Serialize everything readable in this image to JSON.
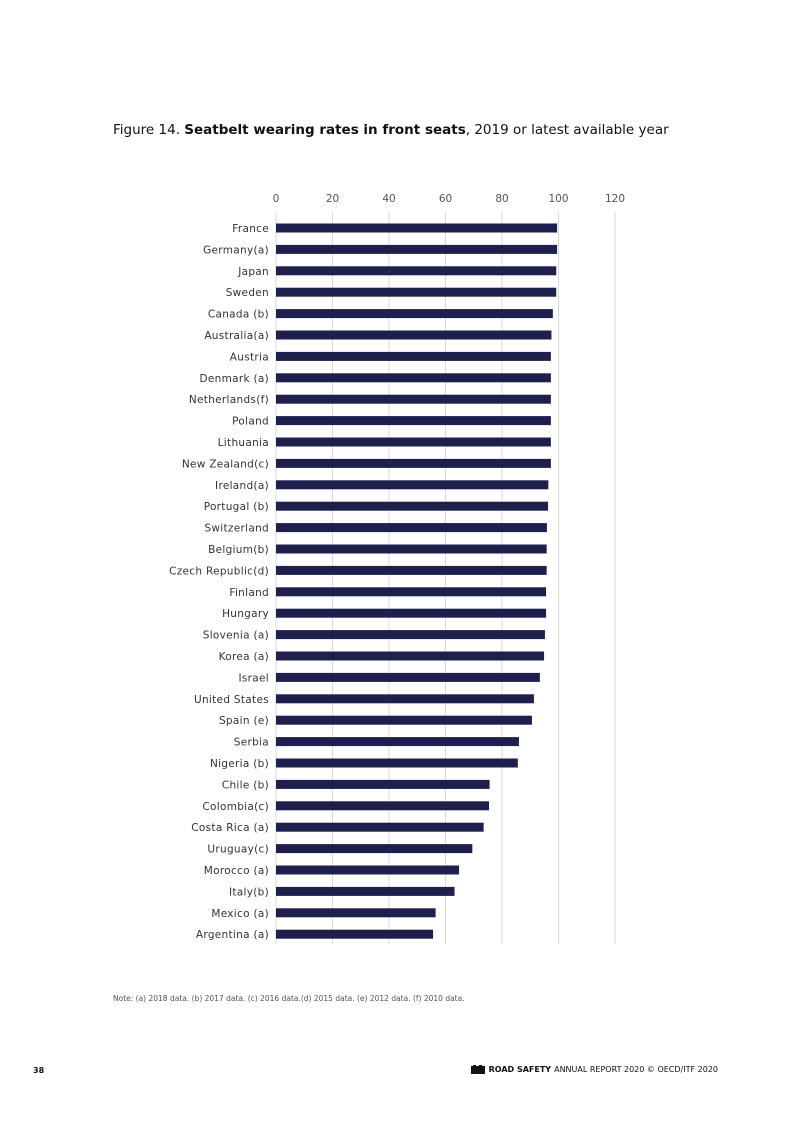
{
  "figure": {
    "label": "Figure 14.",
    "title_bold": "Seatbelt wearing rates in front seats",
    "title_rest": ", 2019 or latest available year"
  },
  "chart_data": {
    "type": "bar",
    "orientation": "horizontal",
    "xlim": [
      0,
      120
    ],
    "ticks": [
      0,
      20,
      40,
      60,
      80,
      100,
      120
    ],
    "grid": true,
    "axis_position": "top",
    "bar_color": "#1f1f4d",
    "categories": [
      "France",
      "Germany(a)",
      "Japan",
      "Sweden",
      "Canada (b)",
      "Australia(a)",
      "Austria",
      "Denmark (a)",
      "Netherlands(f)",
      "Poland",
      "Lithuania",
      "New Zealand(c)",
      "Ireland(a)",
      "Portugal (b)",
      "Switzerland",
      "Belgium(b)",
      "Czech Republic(d)",
      "Finland",
      "Hungary",
      "Slovenia (a)",
      "Korea (a)",
      "Israel",
      "United States",
      "Spain (e)",
      "Serbia",
      "Nigeria (b)",
      "Chile (b)",
      "Colombia(c)",
      "Costa Rica (a)",
      "Uruguay(c)",
      "Morocco (a)",
      "Italy(b)",
      "Mexico (a)",
      "Argentina (a)"
    ],
    "values": [
      99.5,
      99.5,
      99.2,
      99.2,
      98,
      97.5,
      97.3,
      97.3,
      97.3,
      97.3,
      97.3,
      97.3,
      96.4,
      96.3,
      95.9,
      95.8,
      95.8,
      95.6,
      95.6,
      95.2,
      94.9,
      93.4,
      91.3,
      90.6,
      86,
      85.6,
      75.6,
      75.4,
      73.5,
      69.5,
      64.8,
      63.2,
      56.5,
      55.6
    ]
  },
  "note": "Note: (a) 2018 data. (b) 2017 data. (c) 2016 data.(d) 2015 data. (e) 2012 data. (f) 2010 data.",
  "footer": {
    "page_number": "38",
    "report_bold": "ROAD SAFETY",
    "report_rest": "ANNUAL REPORT 2020 © OECD/ITF 2020"
  }
}
